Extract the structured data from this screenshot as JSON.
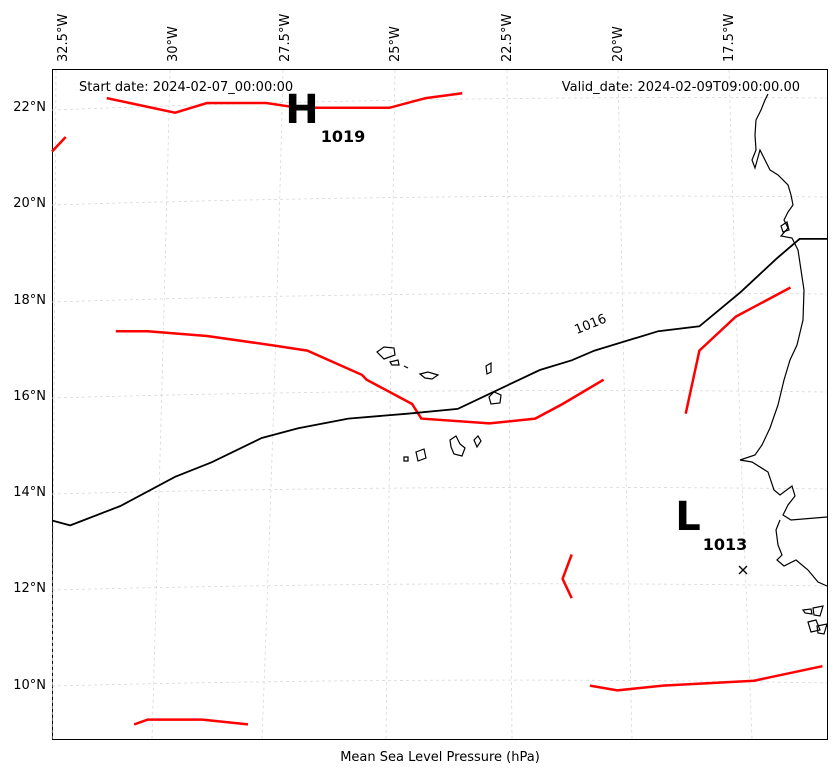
{
  "header": {
    "start_date": "Start date: 2024-02-07_00:00:00",
    "valid_date": "Valid_date: 2024-02-09T09:00:00.00"
  },
  "caption": "Mean Sea Level Pressure (hPa)",
  "lon_ticks": [
    "32.5°W",
    "30°W",
    "27.5°W",
    "25°W",
    "22.5°W",
    "20°W",
    "17.5°W"
  ],
  "lat_ticks": [
    "22°N",
    "20°N",
    "18°N",
    "16°N",
    "14°N",
    "12°N",
    "10°N"
  ],
  "contour": {
    "value_label": "1016",
    "color": "#000000"
  },
  "front_color": "#ff0000",
  "pressure_centers": [
    {
      "type": "H",
      "value": "1019"
    },
    {
      "type": "L",
      "value": "1013"
    }
  ],
  "chart_data": {
    "type": "map",
    "variable": "Mean Sea Level Pressure (hPa)",
    "lon_range": [
      -33,
      -16
    ],
    "lat_range": [
      9,
      22.8
    ],
    "gridlines": true,
    "isobars": [
      {
        "value": 1016,
        "color": "#000000",
        "lon": [
          -33,
          -32.6,
          -31.5,
          -30.3,
          -29.5,
          -28.4,
          -27.6,
          -26.5,
          -25.2,
          -24.1,
          -23.2,
          -22.3,
          -21.6,
          -21.1,
          -19.7,
          -18.8,
          -17.9,
          -17.1,
          -16.6,
          -16.0
        ],
        "lat": [
          13.5,
          13.4,
          13.8,
          14.4,
          14.7,
          15.2,
          15.4,
          15.6,
          15.7,
          15.8,
          16.2,
          16.6,
          16.8,
          17.0,
          17.4,
          17.5,
          18.2,
          18.9,
          19.3,
          19.3
        ]
      }
    ],
    "fronts": [
      {
        "name": "northern",
        "lon": [
          -31.8,
          -30.3,
          -29.6,
          -28.3,
          -27.6,
          -26.3,
          -25.6,
          -24.8,
          -24.0
        ],
        "lat": [
          22.2,
          21.9,
          22.1,
          22.1,
          22.0,
          22.0,
          22.0,
          22.2,
          22.3
        ]
      },
      {
        "name": "northwest",
        "lon": [
          -33.0,
          -32.7
        ],
        "lat": [
          21.1,
          21.4
        ]
      },
      {
        "name": "central",
        "lon": [
          -31.6,
          -30.9,
          -29.6,
          -28.1,
          -27.4,
          -26.2,
          -26.1,
          -25.1,
          -24.9,
          -23.4,
          -22.4,
          -21.8,
          -20.9
        ],
        "lat": [
          17.4,
          17.4,
          17.3,
          17.1,
          17.0,
          16.5,
          16.4,
          15.9,
          15.6,
          15.5,
          15.6,
          15.9,
          16.4
        ]
      },
      {
        "name": "east",
        "lon": [
          -19.1,
          -18.8,
          -18.0,
          -16.8
        ],
        "lat": [
          15.7,
          17.0,
          17.7,
          18.3
        ]
      },
      {
        "name": "south-stub",
        "lon": [
          -21.6,
          -21.8,
          -21.6
        ],
        "lat": [
          12.8,
          12.3,
          11.9
        ]
      },
      {
        "name": "south-east",
        "lon": [
          -21.2,
          -20.6,
          -19.6,
          -17.6,
          -16.1
        ],
        "lat": [
          10.1,
          10.0,
          10.1,
          10.2,
          10.5
        ]
      },
      {
        "name": "southwest",
        "lon": [
          -31.2,
          -30.9,
          -29.7,
          -28.7
        ],
        "lat": [
          9.3,
          9.4,
          9.4,
          9.3
        ]
      }
    ],
    "centers": [
      {
        "type": "H",
        "value": 1019,
        "lon": -26.5,
        "lat": 22.0
      },
      {
        "type": "L",
        "value": 1013,
        "lon": -17.9,
        "lat": 13.4,
        "marker_lon": -17.2,
        "marker_lat": 12.4
      }
    ]
  }
}
